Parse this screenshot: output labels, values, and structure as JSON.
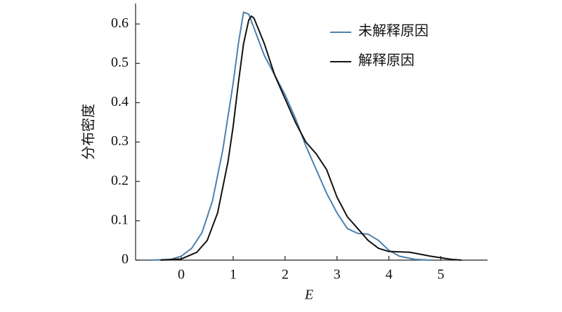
{
  "chart_data": {
    "type": "line",
    "x_label": "E",
    "y_label": "分布密度",
    "xlim": [
      -0.88,
      5.9
    ],
    "ylim": [
      0,
      0.652
    ],
    "xticks": [
      0,
      1,
      2,
      3,
      4,
      5
    ],
    "yticks": [
      0,
      0.1,
      0.2,
      0.3,
      0.4,
      0.5,
      0.6
    ],
    "legend": "upper right",
    "series": [
      {
        "name": "未解释原因",
        "color": "#4d80ad",
        "x": [
          -0.6,
          -0.2,
          0,
          0.2,
          0.4,
          0.6,
          0.8,
          1.0,
          1.1,
          1.2,
          1.3,
          1.4,
          1.6,
          1.8,
          2.0,
          2.2,
          2.4,
          2.6,
          2.8,
          3.0,
          3.2,
          3.4,
          3.6,
          3.8,
          4.0,
          4.2,
          4.5,
          4.8
        ],
        "values": [
          0,
          0.002,
          0.01,
          0.03,
          0.07,
          0.15,
          0.28,
          0.45,
          0.55,
          0.63,
          0.625,
          0.59,
          0.52,
          0.47,
          0.42,
          0.36,
          0.29,
          0.23,
          0.17,
          0.12,
          0.08,
          0.068,
          0.066,
          0.05,
          0.025,
          0.01,
          0.002,
          0
        ]
      },
      {
        "name": "解释原因",
        "color": "#111111",
        "x": [
          -0.4,
          0,
          0.3,
          0.5,
          0.7,
          0.9,
          1.0,
          1.1,
          1.2,
          1.3,
          1.35,
          1.4,
          1.6,
          1.8,
          2.0,
          2.2,
          2.4,
          2.6,
          2.8,
          3.0,
          3.2,
          3.4,
          3.6,
          3.8,
          4.0,
          4.4,
          4.8,
          5.2,
          5.4
        ],
        "values": [
          0,
          0.003,
          0.02,
          0.05,
          0.12,
          0.25,
          0.34,
          0.45,
          0.55,
          0.61,
          0.62,
          0.615,
          0.55,
          0.47,
          0.41,
          0.35,
          0.3,
          0.27,
          0.23,
          0.16,
          0.11,
          0.08,
          0.05,
          0.03,
          0.022,
          0.02,
          0.01,
          0.002,
          0
        ]
      }
    ]
  }
}
